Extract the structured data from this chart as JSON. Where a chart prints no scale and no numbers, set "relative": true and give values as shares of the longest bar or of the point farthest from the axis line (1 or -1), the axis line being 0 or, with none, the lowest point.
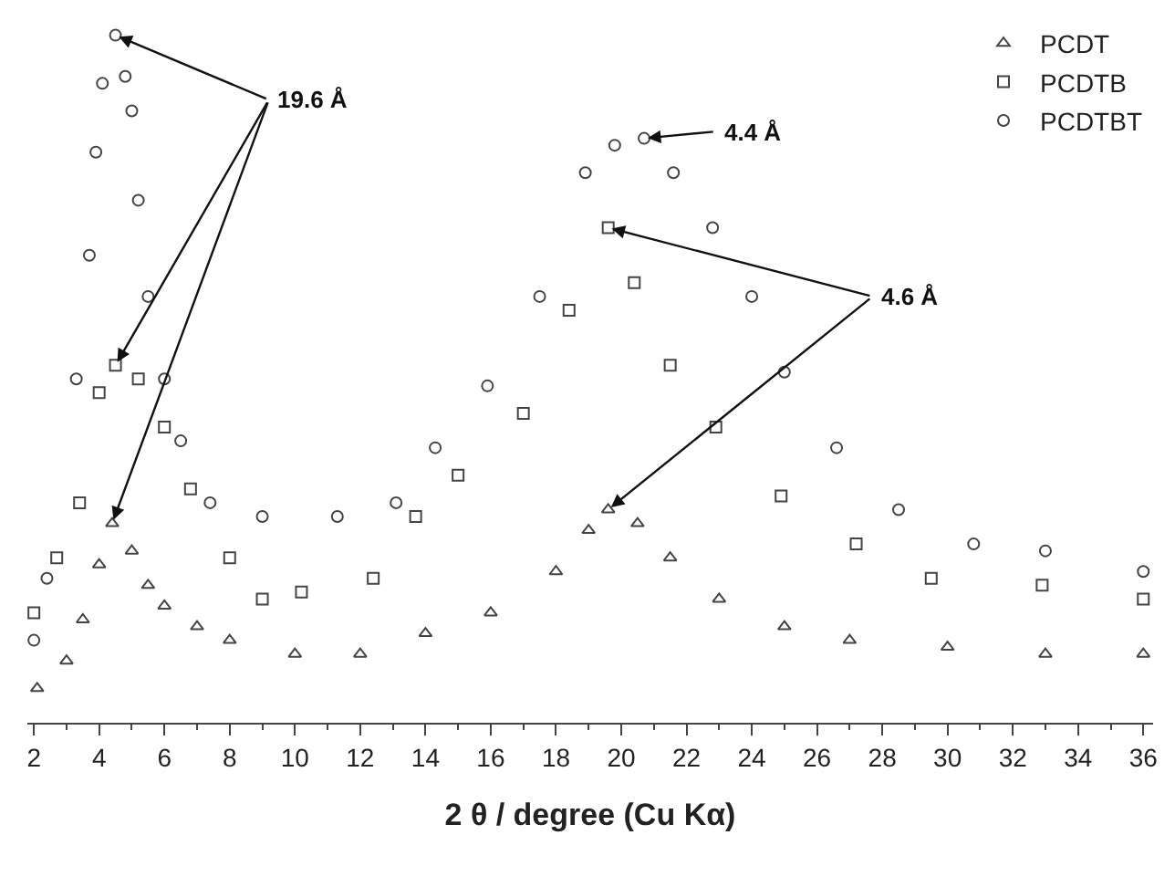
{
  "chart_data": {
    "type": "scatter",
    "relative": true,
    "xlabel": "2 θ / degree (Cu Kα)",
    "xlim": [
      1.8,
      36.3
    ],
    "xticks": [
      2,
      {
        "value": 3,
        "label": null
      },
      4,
      {
        "value": 5,
        "label": null
      },
      6,
      {
        "value": 7,
        "label": null
      },
      8,
      {
        "value": 9,
        "label": null
      },
      10,
      {
        "value": 11,
        "label": null
      },
      12,
      {
        "value": 13,
        "label": null
      },
      14,
      {
        "value": 15,
        "label": null
      },
      16,
      {
        "value": 17,
        "label": null
      },
      18,
      {
        "value": 19,
        "label": null
      },
      20,
      {
        "value": 21,
        "label": null
      },
      22,
      {
        "value": 23,
        "label": null
      },
      24,
      {
        "value": 25,
        "label": null
      },
      26,
      {
        "value": 27,
        "label": null
      },
      28,
      {
        "value": 29,
        "label": null
      },
      30,
      {
        "value": 31,
        "label": null
      },
      32,
      {
        "value": 33,
        "label": null
      },
      34,
      {
        "value": 35,
        "label": null
      },
      36
    ],
    "legend": "top right",
    "series": [
      {
        "name": "PCDT",
        "color": "#444444",
        "marker": "triangle",
        "x": [
          2.1,
          3,
          3.5,
          4,
          4.4,
          5,
          5.5,
          6,
          7,
          8,
          10,
          12,
          14,
          16,
          18,
          19,
          19.6,
          20.5,
          21.5,
          23,
          25,
          27,
          30,
          33,
          36
        ],
        "values": [
          0.05,
          0.09,
          0.15,
          0.23,
          0.29,
          0.25,
          0.2,
          0.17,
          0.14,
          0.12,
          0.1,
          0.1,
          0.13,
          0.16,
          0.22,
          0.28,
          0.31,
          0.29,
          0.24,
          0.18,
          0.14,
          0.12,
          0.11,
          0.1,
          0.1
        ]
      },
      {
        "name": "PCDTB",
        "color": "#444444",
        "marker": "square",
        "x": [
          2,
          2.7,
          3.4,
          4,
          4.5,
          5.2,
          6,
          6.8,
          8,
          9,
          10.2,
          12.4,
          13.7,
          15,
          17,
          18.4,
          19.6,
          20.4,
          21.5,
          22.9,
          24.9,
          27.2,
          29.5,
          32.9,
          36
        ],
        "values": [
          0.16,
          0.24,
          0.32,
          0.48,
          0.52,
          0.5,
          0.43,
          0.34,
          0.24,
          0.18,
          0.19,
          0.21,
          0.3,
          0.36,
          0.45,
          0.6,
          0.72,
          0.64,
          0.52,
          0.43,
          0.33,
          0.26,
          0.21,
          0.2,
          0.18
        ]
      },
      {
        "name": "PCDTBT",
        "color": "#444444",
        "marker": "circle",
        "x": [
          2,
          2.4,
          3.3,
          3.7,
          3.9,
          4.1,
          4.5,
          4.8,
          5,
          5.2,
          5.5,
          6,
          6.5,
          7.4,
          9,
          11.3,
          13.1,
          14.3,
          15.9,
          17.5,
          18.9,
          19.8,
          20.7,
          21.6,
          22.8,
          24,
          25,
          26.6,
          28.5,
          30.8,
          33,
          36
        ],
        "values": [
          0.12,
          0.21,
          0.5,
          0.68,
          0.83,
          0.93,
          1,
          0.94,
          0.89,
          0.76,
          0.62,
          0.5,
          0.41,
          0.32,
          0.3,
          0.3,
          0.32,
          0.4,
          0.49,
          0.62,
          0.8,
          0.84,
          0.85,
          0.8,
          0.72,
          0.62,
          0.51,
          0.4,
          0.31,
          0.26,
          0.25,
          0.22
        ]
      }
    ],
    "annotations": [
      {
        "text": "19.6 Å",
        "x": 4.5,
        "y": 1
      },
      {
        "text": "4.4 Å",
        "x": 20.7,
        "y": 0.85
      },
      {
        "text": "4.6 Å",
        "x": 19.6,
        "y": 0.72
      }
    ]
  }
}
